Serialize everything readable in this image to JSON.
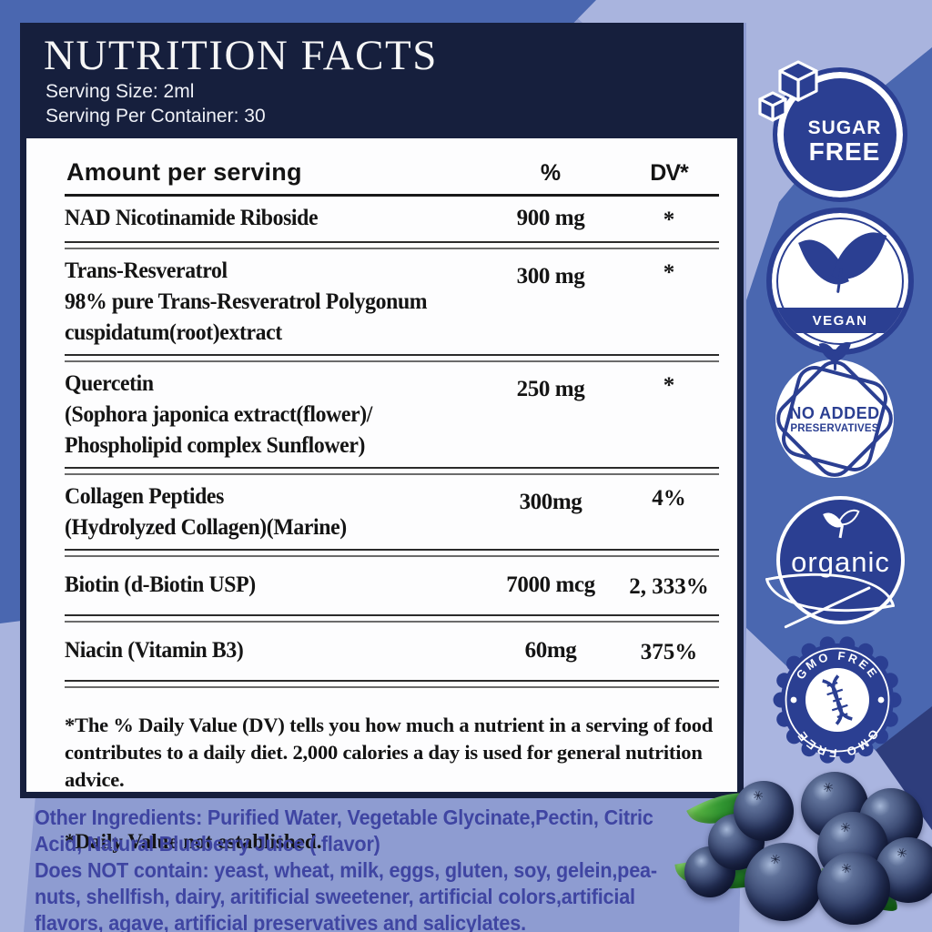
{
  "page": {
    "bg_base": "#8e9cd1",
    "bg_light": "#a9b4de",
    "bg_mid": "#4a67b0",
    "bg_navy": "#161f3d",
    "badge_blue": "#2b3f92",
    "ingredients_text_color": "#3f45a2"
  },
  "header": {
    "title": "NUTRITION FACTS",
    "serving_size": "Serving Size: 2ml",
    "serving_per_container": "Serving Per Container: 30"
  },
  "table": {
    "amount_header": "Amount per serving",
    "percent_header": "%",
    "dv_header": "DV*",
    "rows": [
      {
        "name": "NAD Nicotinamide Riboside",
        "sub": [],
        "amount": "900 mg",
        "dv": "*"
      },
      {
        "name": "Trans-Resveratrol",
        "sub": [
          "98% pure Trans-Resveratrol Polygonum",
          "cuspidatum(root)extract"
        ],
        "amount": "300 mg",
        "dv": "*"
      },
      {
        "name": "Quercetin",
        "sub": [
          "(Sophora japonica extract(flower)/",
          "Phospholipid complex Sunflower)"
        ],
        "amount": "250 mg",
        "dv": "*"
      },
      {
        "name": "Collagen Peptides",
        "sub": [
          "(Hydrolyzed Collagen)(Marine)"
        ],
        "amount": "300mg",
        "dv": "4%"
      },
      {
        "name": "Biotin (d-Biotin USP)",
        "sub": [],
        "amount": "7000 mcg",
        "dv": "2, 333%"
      },
      {
        "name": "Niacin (Vitamin B3)",
        "sub": [],
        "amount": "60mg",
        "dv": "375%"
      }
    ],
    "footnote_dv": "*The % Daily Value (DV) tells you how much a nutrient in a serving of food contributes to a daily diet. 2,000 calories a day is used for general nutrition advice.",
    "footnote_established": "*Daily Value not established."
  },
  "badges": {
    "sugar_free_line1": "SUGAR",
    "sugar_free_line2": "FREE",
    "vegan": "VEGAN",
    "no_added_line1": "NO ADDED",
    "no_added_line2": "PRESERVATIVES",
    "organic": "organic",
    "gmo_top": "GMO FREE",
    "gmo_bottom": "GMO FREE"
  },
  "ingredients": {
    "lines": [
      "Other Ingredients: Purified Water, Vegetable Glycinate,Pectin, Citric",
      "Acid, Natural Blueberry Juice ( flavor)",
      "Does NOT contain: yeast, wheat, milk, eggs, gluten, soy, gelein,pea-",
      "nuts, shellfish, dairy, aritificial sweetener, artificial colors,artificial",
      "flavors, agave, artificial preservatives and salicylates."
    ]
  }
}
